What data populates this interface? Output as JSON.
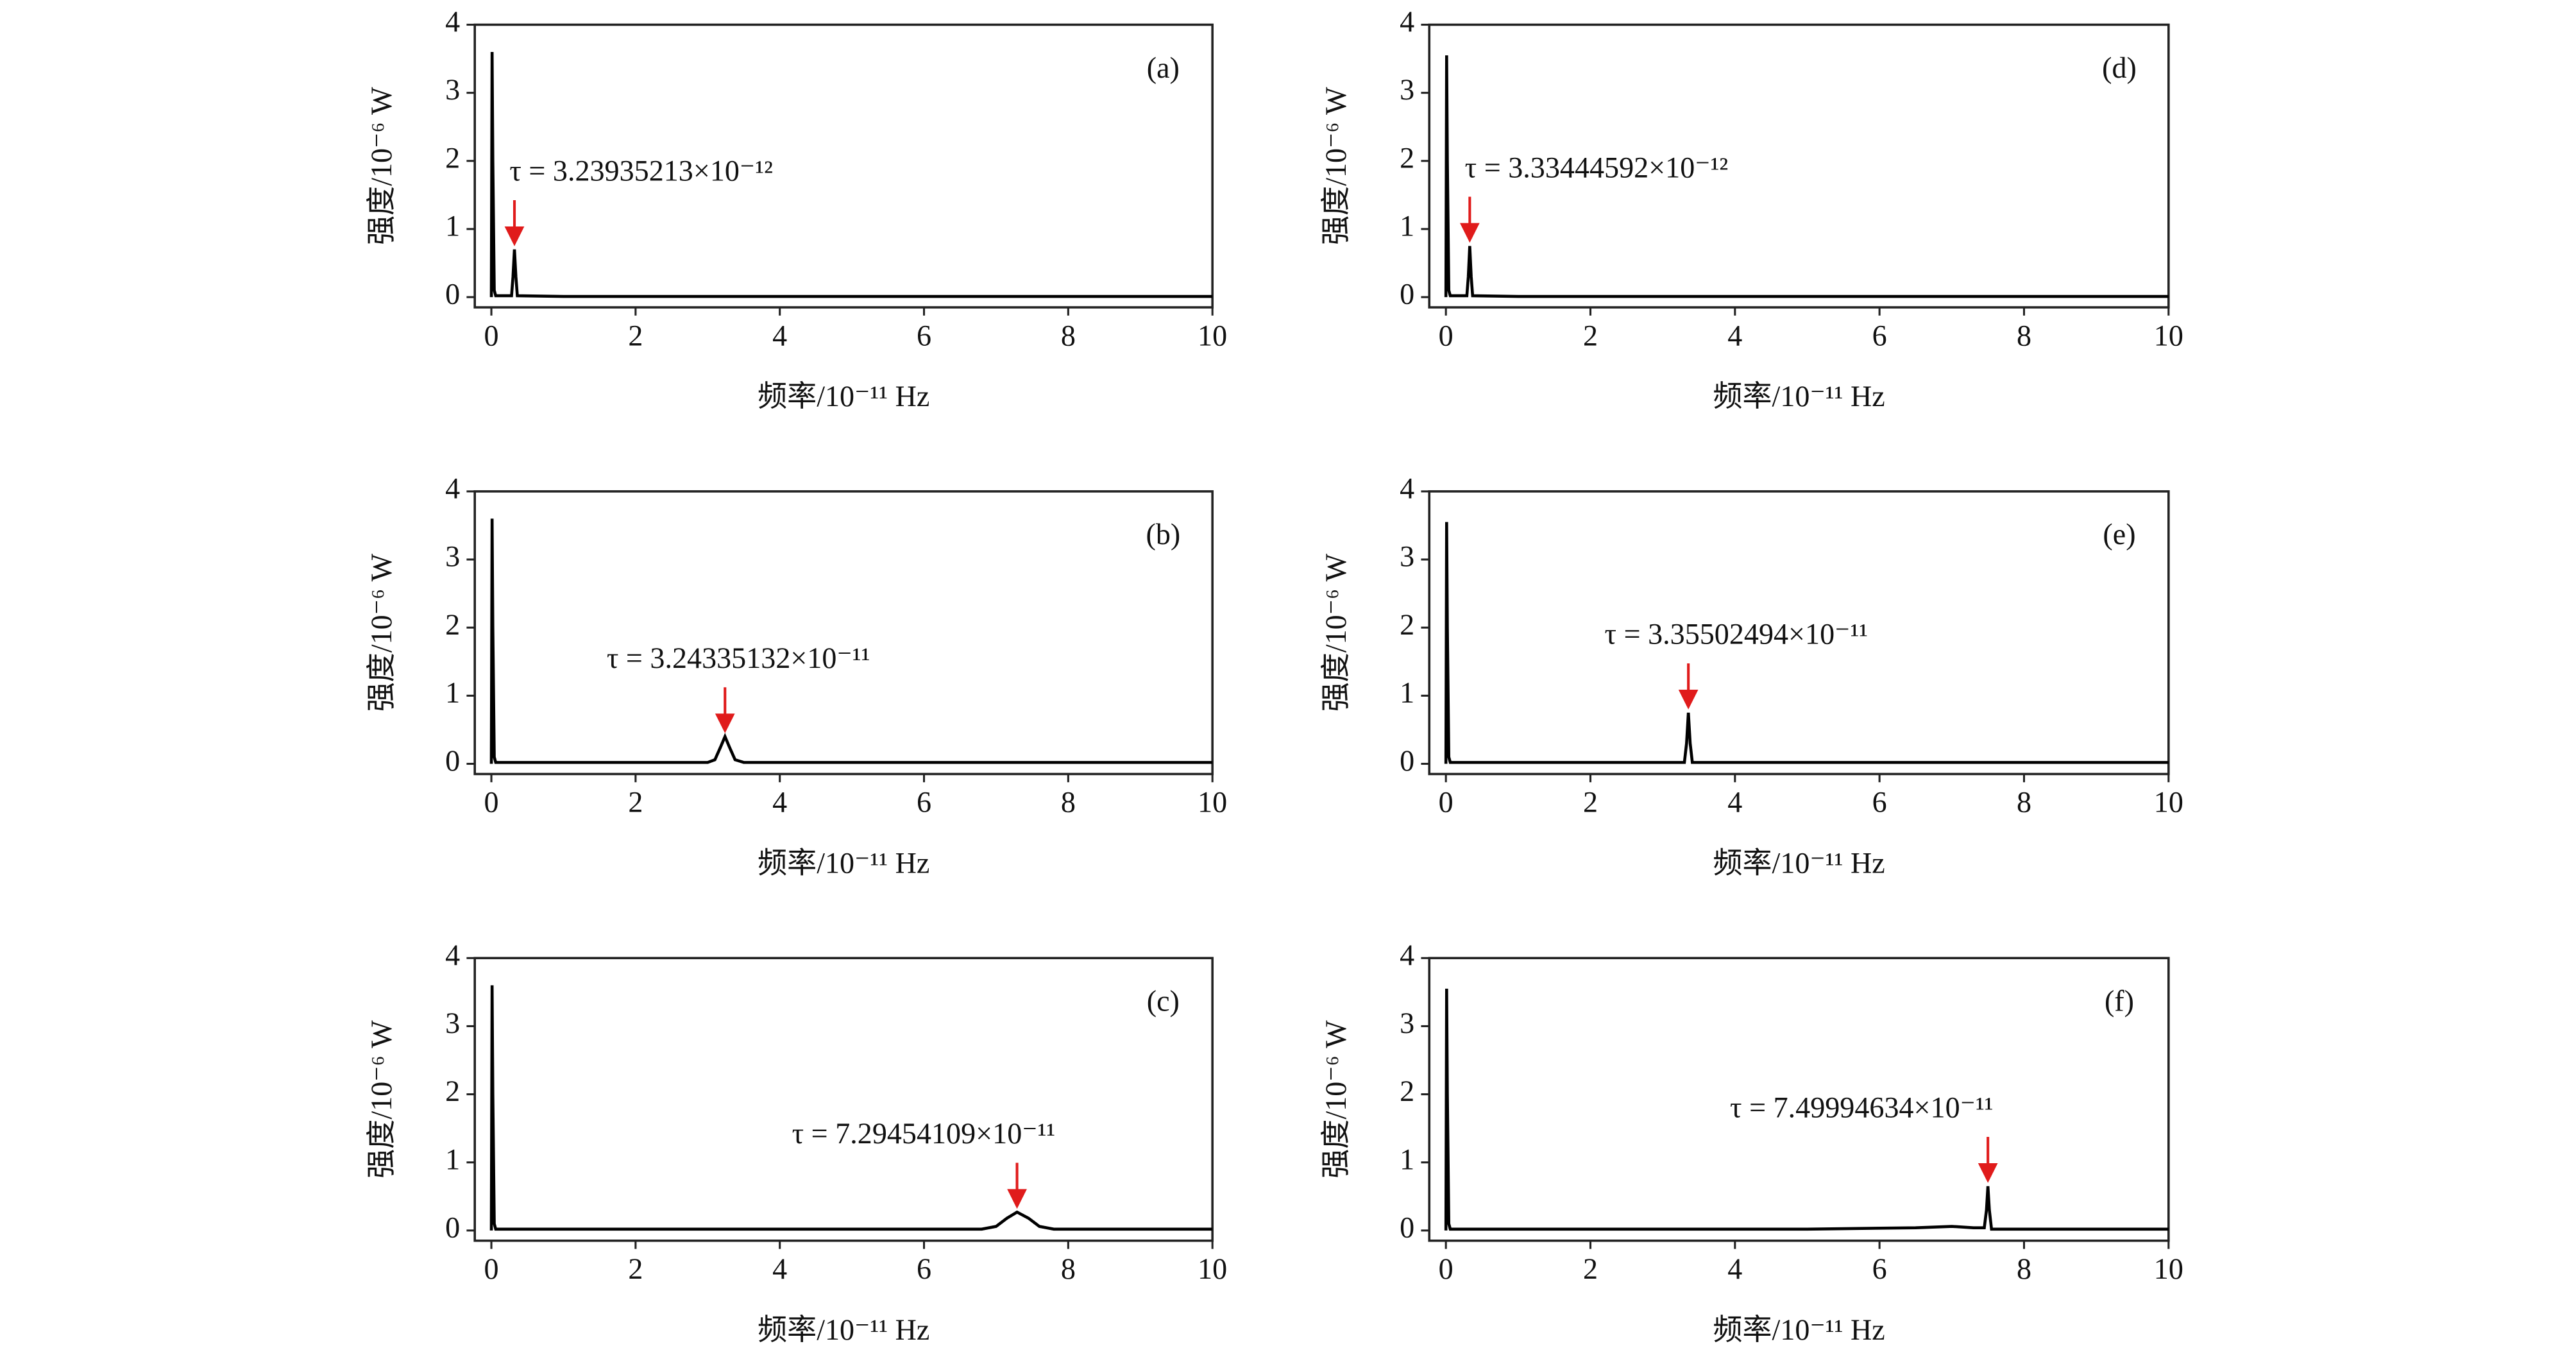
{
  "chart_data": [
    {
      "type": "line",
      "label": "(a)",
      "annotation": "τ = 3.23935213×10⁻¹²",
      "xlabel": "频率/10⁻¹¹ Hz",
      "ylabel": "强度/10⁻⁶ W",
      "xlim": [
        -0.23,
        10
      ],
      "ylim": [
        -0.15,
        4
      ],
      "xticks": [
        0,
        2,
        4,
        6,
        8,
        10
      ],
      "yticks": [
        0,
        1,
        2,
        3,
        4
      ],
      "color": "#000000",
      "x": [
        0,
        0.01,
        0.02,
        0.04,
        0.06,
        0.28,
        0.3,
        0.32,
        0.34,
        0.36,
        1,
        2,
        4,
        6,
        8,
        10
      ],
      "values": [
        0,
        3.6,
        2.0,
        0.1,
        0.02,
        0.02,
        0.3,
        0.7,
        0.3,
        0.02,
        0.01,
        0.01,
        0.01,
        0.01,
        0.01,
        0.01
      ]
    },
    {
      "type": "line",
      "label": "(b)",
      "annotation": "τ = 3.24335132×10⁻¹¹",
      "xlabel": "频率/10⁻¹¹ Hz",
      "ylabel": "强度/10⁻⁶ W",
      "xlim": [
        -0.23,
        10
      ],
      "ylim": [
        -0.15,
        4
      ],
      "xticks": [
        0,
        2,
        4,
        6,
        8,
        10
      ],
      "yticks": [
        0,
        1,
        2,
        3,
        4
      ],
      "color": "#000000",
      "x": [
        0,
        0.01,
        0.02,
        0.04,
        0.06,
        3.0,
        3.1,
        3.18,
        3.24,
        3.3,
        3.38,
        3.5,
        4,
        6,
        8,
        10
      ],
      "values": [
        0,
        3.6,
        2.0,
        0.1,
        0.02,
        0.02,
        0.06,
        0.25,
        0.4,
        0.25,
        0.06,
        0.02,
        0.02,
        0.02,
        0.02,
        0.02
      ]
    },
    {
      "type": "line",
      "label": "(c)",
      "annotation": "τ = 7.29454109×10⁻¹¹",
      "xlabel": "频率/10⁻¹¹ Hz",
      "ylabel": "强度/10⁻⁶ W",
      "xlim": [
        -0.23,
        10
      ],
      "ylim": [
        -0.15,
        4
      ],
      "xticks": [
        0,
        2,
        4,
        6,
        8,
        10
      ],
      "yticks": [
        0,
        1,
        2,
        3,
        4
      ],
      "color": "#000000",
      "x": [
        0,
        0.01,
        0.02,
        0.04,
        0.06,
        6.8,
        7.0,
        7.15,
        7.29,
        7.45,
        7.6,
        7.8,
        8,
        10
      ],
      "values": [
        0,
        3.6,
        2.0,
        0.1,
        0.02,
        0.02,
        0.06,
        0.18,
        0.27,
        0.18,
        0.06,
        0.02,
        0.02,
        0.02
      ]
    },
    {
      "type": "line",
      "label": "(d)",
      "annotation": "τ = 3.33444592×10⁻¹²",
      "xlabel": "频率/10⁻¹¹ Hz",
      "ylabel": "强度/10⁻⁶ W",
      "xlim": [
        -0.23,
        10
      ],
      "ylim": [
        -0.15,
        4
      ],
      "xticks": [
        0,
        2,
        4,
        6,
        8,
        10
      ],
      "yticks": [
        0,
        1,
        2,
        3,
        4
      ],
      "color": "#000000",
      "x": [
        0,
        0.01,
        0.02,
        0.04,
        0.06,
        0.29,
        0.31,
        0.33,
        0.35,
        0.37,
        1,
        2,
        4,
        6,
        8,
        10
      ],
      "values": [
        0,
        3.55,
        2.0,
        0.1,
        0.02,
        0.02,
        0.3,
        0.75,
        0.3,
        0.02,
        0.01,
        0.01,
        0.01,
        0.01,
        0.01,
        0.01
      ]
    },
    {
      "type": "line",
      "label": "(e)",
      "annotation": "τ = 3.35502494×10⁻¹¹",
      "xlabel": "频率/10⁻¹¹ Hz",
      "ylabel": "强度/10⁻⁶ W",
      "xlim": [
        -0.23,
        10
      ],
      "ylim": [
        -0.15,
        4
      ],
      "xticks": [
        0,
        2,
        4,
        6,
        8,
        10
      ],
      "yticks": [
        0,
        1,
        2,
        3,
        4
      ],
      "color": "#000000",
      "x": [
        0,
        0.01,
        0.02,
        0.04,
        0.06,
        3.3,
        3.33,
        3.355,
        3.38,
        3.41,
        4,
        6,
        8,
        10
      ],
      "values": [
        0,
        3.55,
        2.0,
        0.1,
        0.02,
        0.02,
        0.3,
        0.75,
        0.3,
        0.02,
        0.02,
        0.02,
        0.02,
        0.02
      ]
    },
    {
      "type": "line",
      "label": "(f)",
      "annotation": "τ = 7.49994634×10⁻¹¹",
      "xlabel": "频率/10⁻¹¹ Hz",
      "ylabel": "强度/10⁻⁶ W",
      "xlim": [
        -0.23,
        10
      ],
      "ylim": [
        -0.15,
        4
      ],
      "xticks": [
        0,
        2,
        4,
        6,
        8,
        10
      ],
      "yticks": [
        0,
        1,
        2,
        3,
        4
      ],
      "color": "#000000",
      "x": [
        0,
        0.01,
        0.02,
        0.04,
        0.06,
        5,
        6.5,
        7.0,
        7.3,
        7.45,
        7.48,
        7.5,
        7.52,
        7.55,
        8,
        10
      ],
      "values": [
        0,
        3.55,
        2.0,
        0.1,
        0.02,
        0.02,
        0.04,
        0.06,
        0.04,
        0.04,
        0.3,
        0.65,
        0.3,
        0.02,
        0.02,
        0.02
      ]
    }
  ]
}
